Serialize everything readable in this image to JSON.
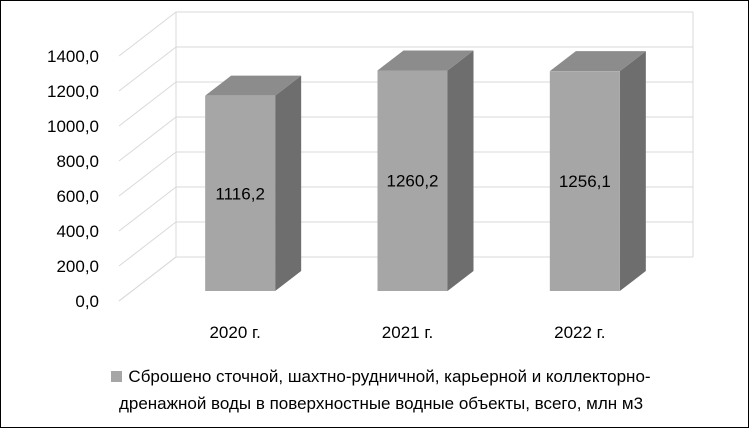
{
  "colors": {
    "bar_front": "#a6a6a6",
    "bar_side": "#6e6e6e",
    "bar_top": "#8c8c8c",
    "grid": "#d9d9d9"
  },
  "chart_data": {
    "type": "bar",
    "categories": [
      "2020 г.",
      "2021 г.",
      "2022 г."
    ],
    "series": [
      {
        "name": "Сброшено сточной, шахтно-рудничной, карьерной и коллекторно-дренажной воды в поверхностные водные объекты, всего, млн м3",
        "values": [
          1116.2,
          1260.2,
          1256.1
        ],
        "labels": [
          "1116,2",
          "1260,2",
          "1256,1"
        ]
      }
    ],
    "yticks": [
      "0,0",
      "200,0",
      "400,0",
      "600,0",
      "800,0",
      "1000,0",
      "1200,0",
      "1400,0"
    ],
    "ylim": [
      0,
      1400
    ],
    "grid": true,
    "legend_position": "bottom",
    "three_d": true
  },
  "legend": {
    "line1": "Сброшено сточной, шахтно-рудничной, карьерной и коллекторно-",
    "line2": "дренажной воды в поверхностные водные объекты, всего, млн м3"
  }
}
